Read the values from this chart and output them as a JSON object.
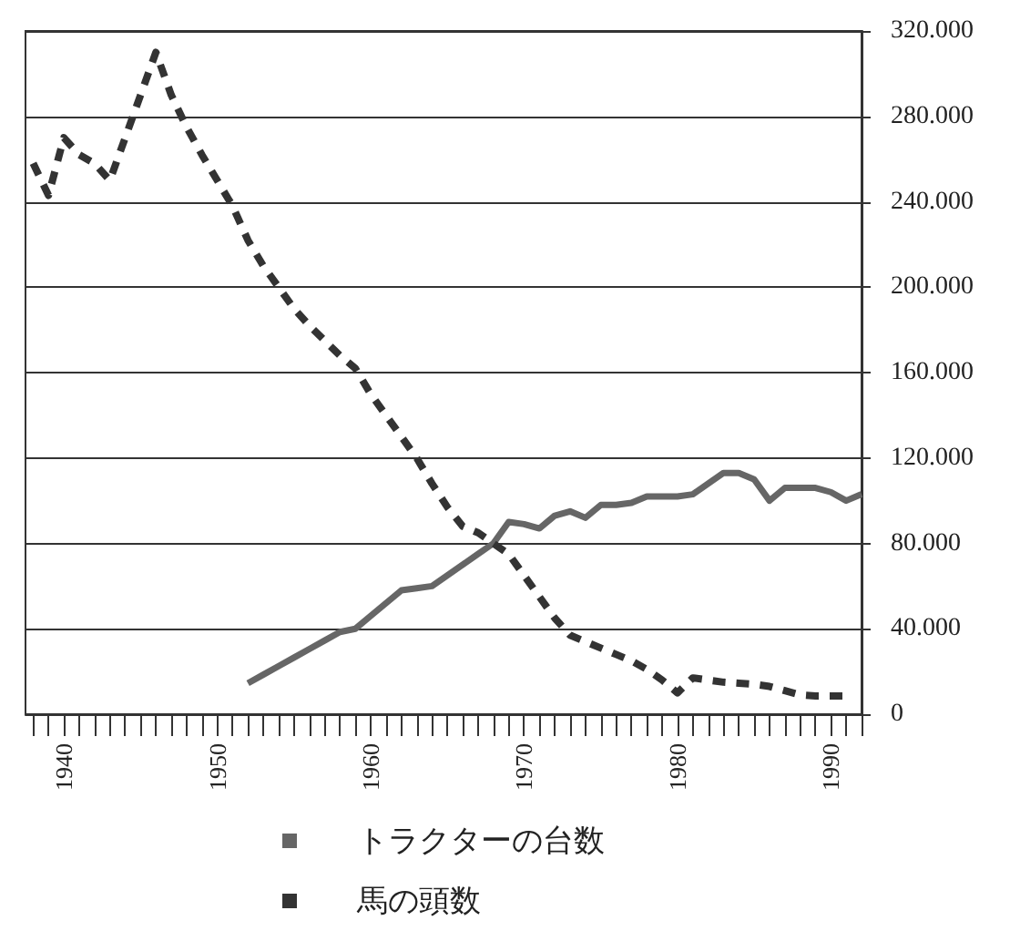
{
  "chart_data": {
    "type": "line",
    "x": [
      1938,
      1939,
      1940,
      1941,
      1942,
      1943,
      1944,
      1945,
      1946,
      1947,
      1948,
      1949,
      1950,
      1951,
      1952,
      1953,
      1954,
      1955,
      1956,
      1957,
      1958,
      1959,
      1960,
      1961,
      1962,
      1963,
      1964,
      1965,
      1966,
      1967,
      1968,
      1969,
      1970,
      1971,
      1972,
      1973,
      1974,
      1975,
      1976,
      1977,
      1978,
      1979,
      1980,
      1981,
      1982,
      1983,
      1984,
      1985,
      1986,
      1987,
      1988,
      1989,
      1990,
      1991,
      1992
    ],
    "series": [
      {
        "name": "トラクターの台数",
        "color": "#666666",
        "line_style": "solid",
        "values": [
          null,
          null,
          null,
          null,
          null,
          null,
          null,
          null,
          null,
          null,
          null,
          null,
          null,
          null,
          14500,
          18500,
          22500,
          26500,
          30500,
          34500,
          38500,
          40000,
          46000,
          52000,
          58000,
          59000,
          60000,
          65000,
          70000,
          75000,
          80000,
          90000,
          89000,
          87000,
          93000,
          95000,
          92000,
          98000,
          98000,
          99000,
          102000,
          102000,
          102000,
          103000,
          108000,
          113000,
          113000,
          110000,
          100000,
          106000,
          106000,
          106000,
          104000,
          100000,
          103000
        ]
      },
      {
        "name": "馬の頭数",
        "color": "#333333",
        "line_style": "dashed",
        "values": [
          258000,
          243000,
          270000,
          262000,
          258000,
          250000,
          270000,
          290000,
          310000,
          290000,
          275000,
          262000,
          250000,
          238000,
          222000,
          210000,
          200000,
          190000,
          182000,
          175000,
          168000,
          162000,
          150000,
          140000,
          130000,
          120000,
          108000,
          97000,
          88000,
          85000,
          80000,
          75000,
          65000,
          55000,
          45000,
          37000,
          34000,
          31000,
          28000,
          25000,
          21000,
          16000,
          10000,
          17000,
          16000,
          15000,
          14500,
          14000,
          13000,
          11000,
          9000,
          8500,
          8500,
          8500,
          null
        ]
      }
    ],
    "xlim": [
      1937.5,
      1992
    ],
    "xticks": [
      {
        "value": 1938,
        "label": null
      },
      {
        "value": 1939,
        "label": null
      },
      {
        "value": 1940,
        "label": "1940"
      },
      {
        "value": 1941,
        "label": null
      },
      {
        "value": 1942,
        "label": null
      },
      {
        "value": 1943,
        "label": null
      },
      {
        "value": 1944,
        "label": null
      },
      {
        "value": 1945,
        "label": null
      },
      {
        "value": 1946,
        "label": null
      },
      {
        "value": 1947,
        "label": null
      },
      {
        "value": 1948,
        "label": null
      },
      {
        "value": 1949,
        "label": null
      },
      {
        "value": 1950,
        "label": "1950"
      },
      {
        "value": 1951,
        "label": null
      },
      {
        "value": 1952,
        "label": null
      },
      {
        "value": 1953,
        "label": null
      },
      {
        "value": 1954,
        "label": null
      },
      {
        "value": 1955,
        "label": null
      },
      {
        "value": 1956,
        "label": null
      },
      {
        "value": 1957,
        "label": null
      },
      {
        "value": 1958,
        "label": null
      },
      {
        "value": 1959,
        "label": null
      },
      {
        "value": 1960,
        "label": "1960"
      },
      {
        "value": 1961,
        "label": null
      },
      {
        "value": 1962,
        "label": null
      },
      {
        "value": 1963,
        "label": null
      },
      {
        "value": 1964,
        "label": null
      },
      {
        "value": 1965,
        "label": null
      },
      {
        "value": 1966,
        "label": null
      },
      {
        "value": 1967,
        "label": null
      },
      {
        "value": 1968,
        "label": null
      },
      {
        "value": 1969,
        "label": null
      },
      {
        "value": 1970,
        "label": "1970"
      },
      {
        "value": 1971,
        "label": null
      },
      {
        "value": 1972,
        "label": null
      },
      {
        "value": 1973,
        "label": null
      },
      {
        "value": 1974,
        "label": null
      },
      {
        "value": 1975,
        "label": null
      },
      {
        "value": 1976,
        "label": null
      },
      {
        "value": 1977,
        "label": null
      },
      {
        "value": 1978,
        "label": null
      },
      {
        "value": 1979,
        "label": null
      },
      {
        "value": 1980,
        "label": "1980"
      },
      {
        "value": 1981,
        "label": null
      },
      {
        "value": 1982,
        "label": null
      },
      {
        "value": 1983,
        "label": null
      },
      {
        "value": 1984,
        "label": null
      },
      {
        "value": 1985,
        "label": null
      },
      {
        "value": 1986,
        "label": null
      },
      {
        "value": 1987,
        "label": null
      },
      {
        "value": 1988,
        "label": null
      },
      {
        "value": 1989,
        "label": null
      },
      {
        "value": 1990,
        "label": "1990"
      },
      {
        "value": 1991,
        "label": null
      },
      {
        "value": 1992,
        "label": null
      }
    ],
    "ylim": [
      0,
      320000
    ],
    "yticks": [
      0,
      {
        "value": 40000,
        "label": "40.000"
      },
      {
        "value": 80000,
        "label": "80.000"
      },
      {
        "value": 120000,
        "label": "120.000"
      },
      {
        "value": 160000,
        "label": "160.000"
      },
      {
        "value": 200000,
        "label": "200.000"
      },
      {
        "value": 240000,
        "label": "240.000"
      },
      {
        "value": 280000,
        "label": "280.000"
      },
      {
        "value": 320000,
        "label": "320.000"
      }
    ],
    "grid": "y",
    "legend": "bottom",
    "marker": "none"
  }
}
